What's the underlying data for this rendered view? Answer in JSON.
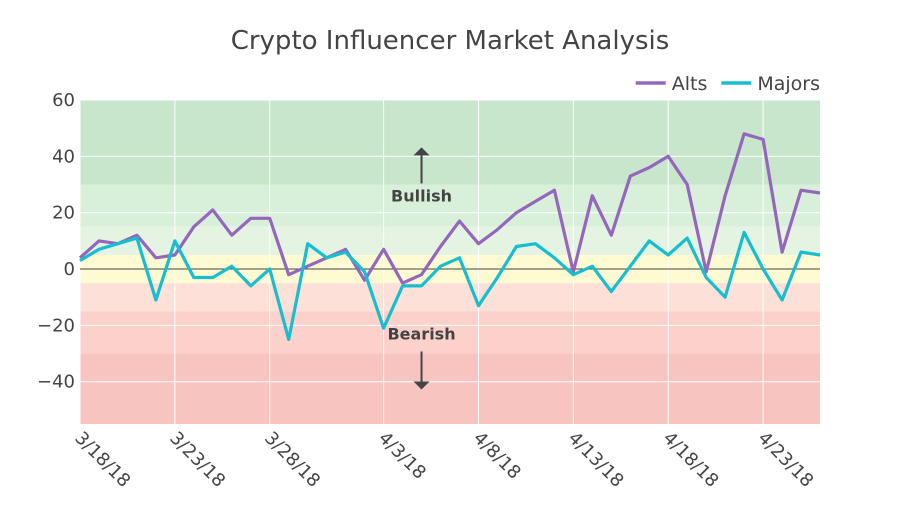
{
  "chart_data": {
    "type": "line",
    "title": "Crypto Influencer Market Analysis",
    "xlabel": "",
    "ylabel": "",
    "ylim": [
      -55,
      60
    ],
    "y_ticks": [
      60,
      40,
      20,
      0,
      -20,
      -40
    ],
    "y_tick_labels": [
      "60",
      "40",
      "20",
      "0",
      "−20",
      "−40"
    ],
    "x_tick_dates": [
      "2018-03-18",
      "2018-03-23",
      "2018-03-28",
      "2018-04-03",
      "2018-04-08",
      "2018-04-13",
      "2018-04-18",
      "2018-04-23"
    ],
    "x_tick_labels": [
      "3/18/18",
      "3/23/18",
      "3/28/18",
      "4/3/18",
      "4/8/18",
      "4/13/18",
      "4/18/18",
      "4/23/18"
    ],
    "x_range": [
      "2018-03-18",
      "2018-04-26"
    ],
    "grid": true,
    "legend_position": "top-right",
    "bands": [
      {
        "from": 30,
        "to": 60,
        "color": "#c7e6cc"
      },
      {
        "from": 15,
        "to": 30,
        "color": "#d8efda"
      },
      {
        "from": 5,
        "to": 15,
        "color": "#e5f4e2"
      },
      {
        "from": -5,
        "to": 5,
        "color": "#fefbd2"
      },
      {
        "from": -15,
        "to": -5,
        "color": "#fde0d8"
      },
      {
        "from": -30,
        "to": -15,
        "color": "#fcd1cb"
      },
      {
        "from": -55,
        "to": -30,
        "color": "#f8c4c0"
      }
    ],
    "annotations": [
      {
        "text": "Bullish",
        "x": "2018-04-05",
        "y": 24,
        "arrow": "up"
      },
      {
        "text": "Bearish",
        "x": "2018-04-05",
        "y": -25,
        "arrow": "down"
      }
    ],
    "series": [
      {
        "name": "Alts",
        "color": "#9467bd",
        "x": [
          "2018-03-18",
          "2018-03-19",
          "2018-03-20",
          "2018-03-21",
          "2018-03-22",
          "2018-03-23",
          "2018-03-24",
          "2018-03-25",
          "2018-03-26",
          "2018-03-27",
          "2018-03-28",
          "2018-03-29",
          "2018-03-30",
          "2018-03-31",
          "2018-04-01",
          "2018-04-02",
          "2018-04-03",
          "2018-04-04",
          "2018-04-05",
          "2018-04-06",
          "2018-04-07",
          "2018-04-08",
          "2018-04-09",
          "2018-04-10",
          "2018-04-11",
          "2018-04-12",
          "2018-04-13",
          "2018-04-14",
          "2018-04-15",
          "2018-04-16",
          "2018-04-17",
          "2018-04-18",
          "2018-04-19",
          "2018-04-20",
          "2018-04-21",
          "2018-04-22",
          "2018-04-23",
          "2018-04-24",
          "2018-04-25",
          "2018-04-26"
        ],
        "values": [
          4,
          10,
          9,
          12,
          4,
          5,
          15,
          21,
          12,
          18,
          18,
          -2,
          1,
          4,
          7,
          -4,
          7,
          -5,
          -2,
          8,
          17,
          9,
          14,
          20,
          24,
          28,
          -1,
          26,
          12,
          33,
          36,
          40,
          30,
          -1,
          26,
          48,
          46,
          6,
          28,
          27
        ]
      },
      {
        "name": "Majors",
        "color": "#17becf",
        "x": [
          "2018-03-18",
          "2018-03-19",
          "2018-03-20",
          "2018-03-21",
          "2018-03-22",
          "2018-03-23",
          "2018-03-24",
          "2018-03-25",
          "2018-03-26",
          "2018-03-27",
          "2018-03-28",
          "2018-03-29",
          "2018-03-30",
          "2018-03-31",
          "2018-04-01",
          "2018-04-02",
          "2018-04-03",
          "2018-04-04",
          "2018-04-05",
          "2018-04-06",
          "2018-04-07",
          "2018-04-08",
          "2018-04-09",
          "2018-04-10",
          "2018-04-11",
          "2018-04-12",
          "2018-04-13",
          "2018-04-14",
          "2018-04-15",
          "2018-04-16",
          "2018-04-17",
          "2018-04-18",
          "2018-04-19",
          "2018-04-20",
          "2018-04-21",
          "2018-04-22",
          "2018-04-23",
          "2018-04-24",
          "2018-04-25",
          "2018-04-26"
        ],
        "values": [
          3,
          7,
          9,
          11,
          -11,
          10,
          -3,
          -3,
          1,
          -6,
          0,
          -25,
          9,
          4,
          6,
          -1,
          -21,
          -6,
          -6,
          1,
          4,
          -13,
          -3,
          8,
          9,
          4,
          -2,
          1,
          -8,
          1,
          10,
          5,
          11,
          -3,
          -10,
          13,
          0,
          -11,
          6,
          5
        ]
      }
    ]
  }
}
